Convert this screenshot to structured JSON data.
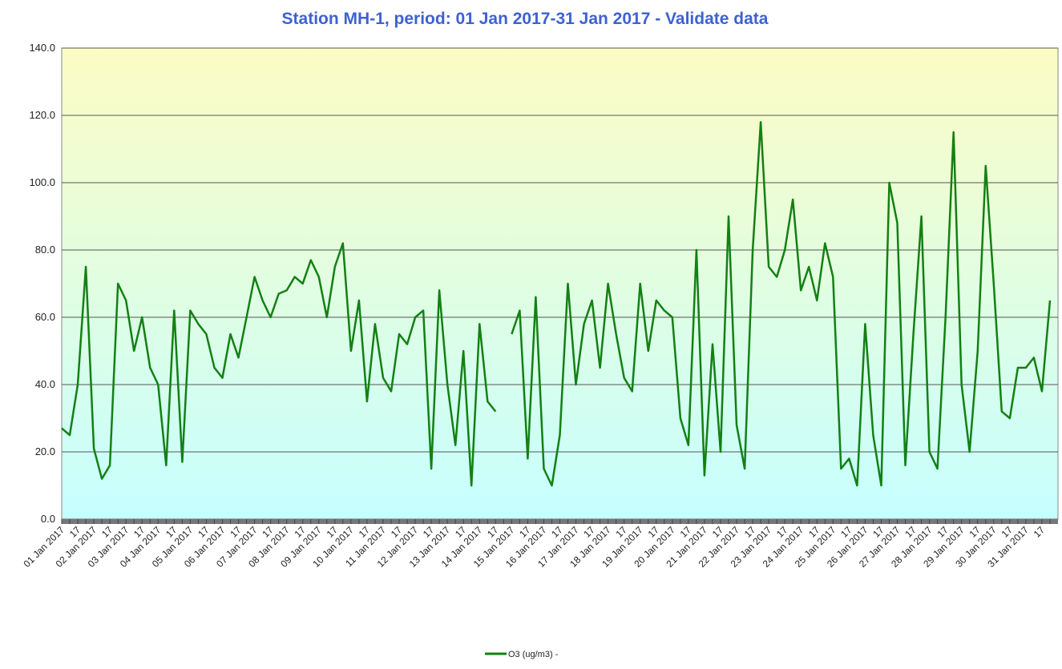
{
  "chart_data": {
    "type": "line",
    "title": "Station MH-1, period: 01 Jan 2017-31 Jan 2017 - Validate data",
    "categories": [
      "01 Jan 2017",
      null,
      "17",
      null,
      "02 Jan 2017",
      null,
      "17",
      null,
      "03 Jan 2017",
      null,
      "17",
      null,
      "04 Jan 2017",
      null,
      "17",
      null,
      "05 Jan 2017",
      null,
      "17",
      null,
      "06 Jan 2017",
      null,
      "17",
      null,
      "07 Jan 2017",
      null,
      "17",
      null,
      "08 Jan 2017",
      null,
      "17",
      null,
      "09 Jan 2017",
      null,
      "17",
      null,
      "10 Jan 2017",
      null,
      "17",
      null,
      "11 Jan 2017",
      null,
      "17",
      null,
      "12 Jan 2017",
      null,
      "17",
      null,
      "13 Jan 2017",
      null,
      "17",
      null,
      "14 Jan 2017",
      null,
      "17",
      null,
      "15 Jan 2017",
      null,
      "17",
      null,
      "16 Jan 2017",
      null,
      "17",
      null,
      "17 Jan 2017",
      null,
      "17",
      null,
      "18 Jan 2017",
      null,
      "17",
      null,
      "19 Jan 2017",
      null,
      "17",
      null,
      "20 Jan 2017",
      null,
      "17",
      null,
      "21 Jan 2017",
      null,
      "17",
      null,
      "22 Jan 2017",
      null,
      "17",
      null,
      "23 Jan 2017",
      null,
      "17",
      null,
      "24 Jan 2017",
      null,
      "17",
      null,
      "25 Jan 2017",
      null,
      "17",
      null,
      "26 Jan 2017",
      null,
      "17",
      null,
      "27 Jan 2017",
      null,
      "17",
      null,
      "28 Jan 2017",
      null,
      "17",
      null,
      "29 Jan 2017",
      null,
      "17",
      null,
      "30 Jan 2017",
      null,
      "17",
      null,
      "31 Jan 2017",
      null,
      "17",
      null
    ],
    "series": [
      {
        "name": "O3 (ug/m3) -",
        "color": "#138013",
        "values": [
          27,
          25,
          40,
          75,
          21,
          12,
          16,
          70,
          65,
          50,
          60,
          45,
          40,
          16,
          62,
          17,
          62,
          58,
          55,
          45,
          42,
          55,
          48,
          60,
          72,
          65,
          60,
          67,
          68,
          72,
          70,
          77,
          72,
          60,
          75,
          82,
          50,
          65,
          35,
          58,
          42,
          38,
          55,
          52,
          60,
          62,
          15,
          68,
          40,
          22,
          50,
          10,
          58,
          35,
          32,
          null,
          55,
          62,
          18,
          66,
          15,
          10,
          25,
          70,
          40,
          58,
          65,
          45,
          70,
          55,
          42,
          38,
          70,
          50,
          65,
          62,
          60,
          30,
          22,
          80,
          13,
          52,
          20,
          90,
          28,
          15,
          80,
          118,
          75,
          72,
          80,
          95,
          68,
          75,
          65,
          82,
          72,
          15,
          18,
          10,
          58,
          25,
          10,
          100,
          88,
          16,
          55,
          90,
          20,
          15,
          60,
          115,
          40,
          20,
          50,
          105,
          70,
          32,
          30,
          45,
          45,
          48,
          38,
          65
        ]
      }
    ],
    "ylim": [
      0,
      140
    ],
    "yticks": [
      {
        "value": 0,
        "label": "0.0"
      },
      {
        "value": 20,
        "label": "20.0"
      },
      {
        "value": 40,
        "label": "40.0"
      },
      {
        "value": 60,
        "label": "60.0"
      },
      {
        "value": 80,
        "label": "80.0"
      },
      {
        "value": 100,
        "label": "100.0"
      },
      {
        "value": 120,
        "label": "120.0"
      },
      {
        "value": 140,
        "label": "140.0"
      }
    ],
    "grid": true
  }
}
